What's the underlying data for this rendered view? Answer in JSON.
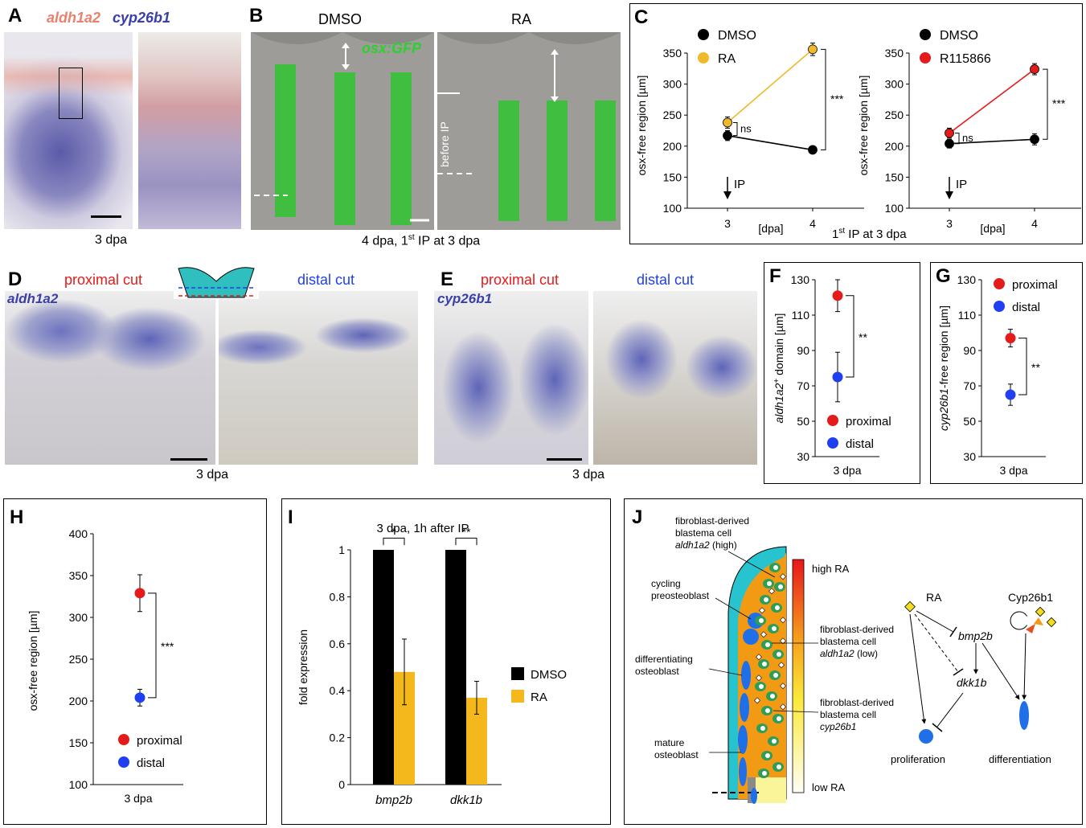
{
  "A": {
    "label": "A",
    "gene1": "aldh1a2",
    "gene2": "cyp26b1",
    "caption": "3 dpa",
    "color1": "#e8826e",
    "color2": "#3b3fa8"
  },
  "B": {
    "label": "B",
    "dmso": "DMSO",
    "ra": "RA",
    "reporter": "osx:GFP",
    "before_ip": "before IP",
    "caption": "4 dpa, 1st IP at 3 dpa",
    "gfp_color": "#2fcf2f"
  },
  "C": {
    "label": "C",
    "ylabel": "osx-free region [µm]",
    "xlabel": "[dpa]",
    "caption": "1st IP at 3 dpa",
    "ip_label": "IP",
    "ns_label": "ns",
    "sig_label": "***",
    "left": {
      "legend": [
        "DMSO",
        "RA"
      ]
    },
    "right": {
      "legend": [
        "DMSO",
        "R115866"
      ]
    }
  },
  "D": {
    "label": "D",
    "proximal": "proximal cut",
    "distal": "distal cut",
    "gene": "aldh1a2",
    "caption": "3 dpa"
  },
  "E": {
    "label": "E",
    "proximal": "proximal cut",
    "distal": "distal cut",
    "gene": "cyp26b1",
    "caption": "3 dpa"
  },
  "F": {
    "label": "F",
    "ylabel": "aldh1a2+ domain [µm]",
    "xlabel": "3 dpa",
    "sig": "**",
    "legend": [
      "proximal",
      "distal"
    ]
  },
  "G": {
    "label": "G",
    "ylabel": "cyp26b1-free region [µm]",
    "xlabel": "3 dpa",
    "sig": "**",
    "legend": [
      "proximal",
      "distal"
    ]
  },
  "H": {
    "label": "H",
    "ylabel": "osx-free region [µm]",
    "xlabel": "3 dpa",
    "sig": "***",
    "legend": [
      "proximal",
      "distal"
    ]
  },
  "I": {
    "label": "I",
    "title": "3 dpa, 1h after IP",
    "ylabel": "fold expression",
    "sig": [
      "*",
      "**"
    ],
    "legend": [
      "DMSO",
      "RA"
    ]
  },
  "J": {
    "label": "J",
    "high_ra": "high RA",
    "low_ra": "low RA",
    "fib_high": [
      "fibroblast-derived",
      "blastema cell",
      "aldh1a2 (high)"
    ],
    "cycling": [
      "cycling",
      "preosteoblast"
    ],
    "fib_low": [
      "fibroblast-derived",
      "blastema cell",
      "aldh1a2 (low)"
    ],
    "differentiating": [
      "differentiating",
      "osteoblast"
    ],
    "fib_cyp": [
      "fibroblast-derived",
      "blastema cell",
      "cyp26b1"
    ],
    "mature": [
      "mature",
      "osteoblast"
    ],
    "ra": "RA",
    "cyp": "Cyp26b1",
    "bmp2b": "bmp2b",
    "dkk1b": "dkk1b",
    "proliferation": "proliferation",
    "differentiation": "differentiation"
  },
  "chart_data": [
    {
      "panel": "C-left",
      "type": "line",
      "x": [
        3,
        4
      ],
      "xlabel": "[dpa]",
      "ylabel": "osx-free region [µm]",
      "ylim": [
        100,
        350
      ],
      "yticks": [
        100,
        150,
        200,
        250,
        300,
        350
      ],
      "series": [
        {
          "name": "DMSO",
          "values": [
            217,
            194
          ],
          "errors": [
            8,
            3
          ],
          "color": "#000000"
        },
        {
          "name": "RA",
          "values": [
            238,
            356
          ],
          "errors": [
            9,
            10
          ],
          "color": "#f0b92a"
        }
      ],
      "annotations": [
        "ns",
        "***",
        "IP"
      ]
    },
    {
      "panel": "C-right",
      "type": "line",
      "x": [
        3,
        4
      ],
      "xlabel": "[dpa]",
      "ylabel": "osx-free region [µm]",
      "ylim": [
        100,
        350
      ],
      "yticks": [
        100,
        150,
        200,
        250,
        300,
        350
      ],
      "series": [
        {
          "name": "DMSO",
          "values": [
            204,
            211
          ],
          "errors": [
            7,
            9
          ],
          "color": "#000000"
        },
        {
          "name": "R115866",
          "values": [
            221,
            324
          ],
          "errors": [
            8,
            9
          ],
          "color": "#e51b1b"
        }
      ],
      "annotations": [
        "ns",
        "***",
        "IP"
      ]
    },
    {
      "panel": "F",
      "type": "scatter",
      "xlabel": "3 dpa",
      "ylabel": "aldh1a2+ domain [µm]",
      "ylim": [
        30,
        130
      ],
      "yticks": [
        30,
        50,
        70,
        90,
        110,
        130
      ],
      "series": [
        {
          "name": "proximal",
          "values": [
            121
          ],
          "errors": [
            9
          ],
          "color": "#e51b1b"
        },
        {
          "name": "distal",
          "values": [
            75
          ],
          "errors": [
            14
          ],
          "color": "#1f3ff0"
        }
      ],
      "annotations": [
        "**"
      ]
    },
    {
      "panel": "G",
      "type": "scatter",
      "xlabel": "3 dpa",
      "ylabel": "cyp26b1-free region [µm]",
      "ylim": [
        30,
        130
      ],
      "yticks": [
        30,
        50,
        70,
        90,
        110,
        130
      ],
      "series": [
        {
          "name": "proximal",
          "values": [
            97
          ],
          "errors": [
            5
          ],
          "color": "#e51b1b"
        },
        {
          "name": "distal",
          "values": [
            65
          ],
          "errors": [
            6
          ],
          "color": "#1f3ff0"
        }
      ],
      "annotations": [
        "**"
      ]
    },
    {
      "panel": "H",
      "type": "scatter",
      "xlabel": "3 dpa",
      "ylabel": "osx-free region [µm]",
      "ylim": [
        100,
        400
      ],
      "yticks": [
        100,
        150,
        200,
        250,
        300,
        350,
        400
      ],
      "series": [
        {
          "name": "proximal",
          "values": [
            329
          ],
          "errors": [
            22
          ],
          "color": "#e51b1b"
        },
        {
          "name": "distal",
          "values": [
            204
          ],
          "errors": [
            10
          ],
          "color": "#1f3ff0"
        }
      ],
      "annotations": [
        "***"
      ]
    },
    {
      "panel": "I",
      "type": "bar",
      "title": "3 dpa, 1h after IP",
      "categories": [
        "bmp2b",
        "dkk1b"
      ],
      "ylabel": "fold expression",
      "ylim": [
        0,
        1
      ],
      "yticks": [
        0,
        0.2,
        0.4,
        0.6,
        0.8,
        1
      ],
      "series": [
        {
          "name": "DMSO",
          "values": [
            1,
            1
          ],
          "errors": [
            0,
            0
          ],
          "color": "#000000"
        },
        {
          "name": "RA",
          "values": [
            0.48,
            0.37
          ],
          "errors": [
            0.14,
            0.07
          ],
          "color": "#f5b81c"
        }
      ],
      "annotations": [
        "*",
        "**"
      ]
    }
  ]
}
